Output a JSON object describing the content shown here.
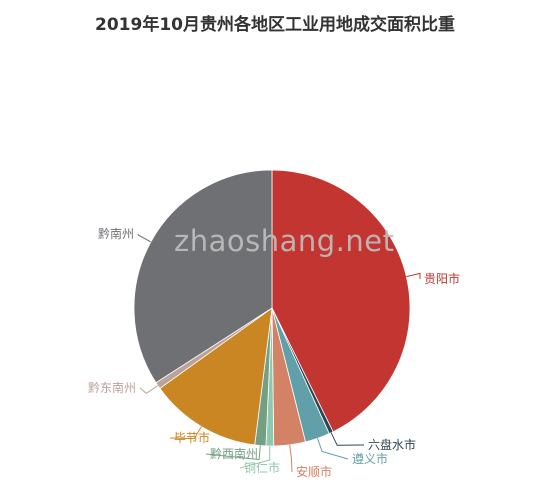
{
  "chart_data": {
    "type": "pie",
    "title": "2019年10月贵州各地区工业用地成交面积比重",
    "watermark": "zhaoshang.net",
    "categories": [
      "贵阳市",
      "六盘水市",
      "遵义市",
      "安顺市",
      "铜仁市",
      "黔西南州",
      "毕节市",
      "黔东南州",
      "黔南州"
    ],
    "values": [
      42.7,
      0.5,
      2.9,
      3.7,
      0.9,
      1.3,
      13.1,
      0.8,
      34.1
    ],
    "unit": "%",
    "colors": [
      "#c23531",
      "#2f4554",
      "#61a0a8",
      "#d48265",
      "#91c7ae",
      "#749f83",
      "#ca8622",
      "#bda29a",
      "#6e7074"
    ],
    "legend": "none"
  }
}
